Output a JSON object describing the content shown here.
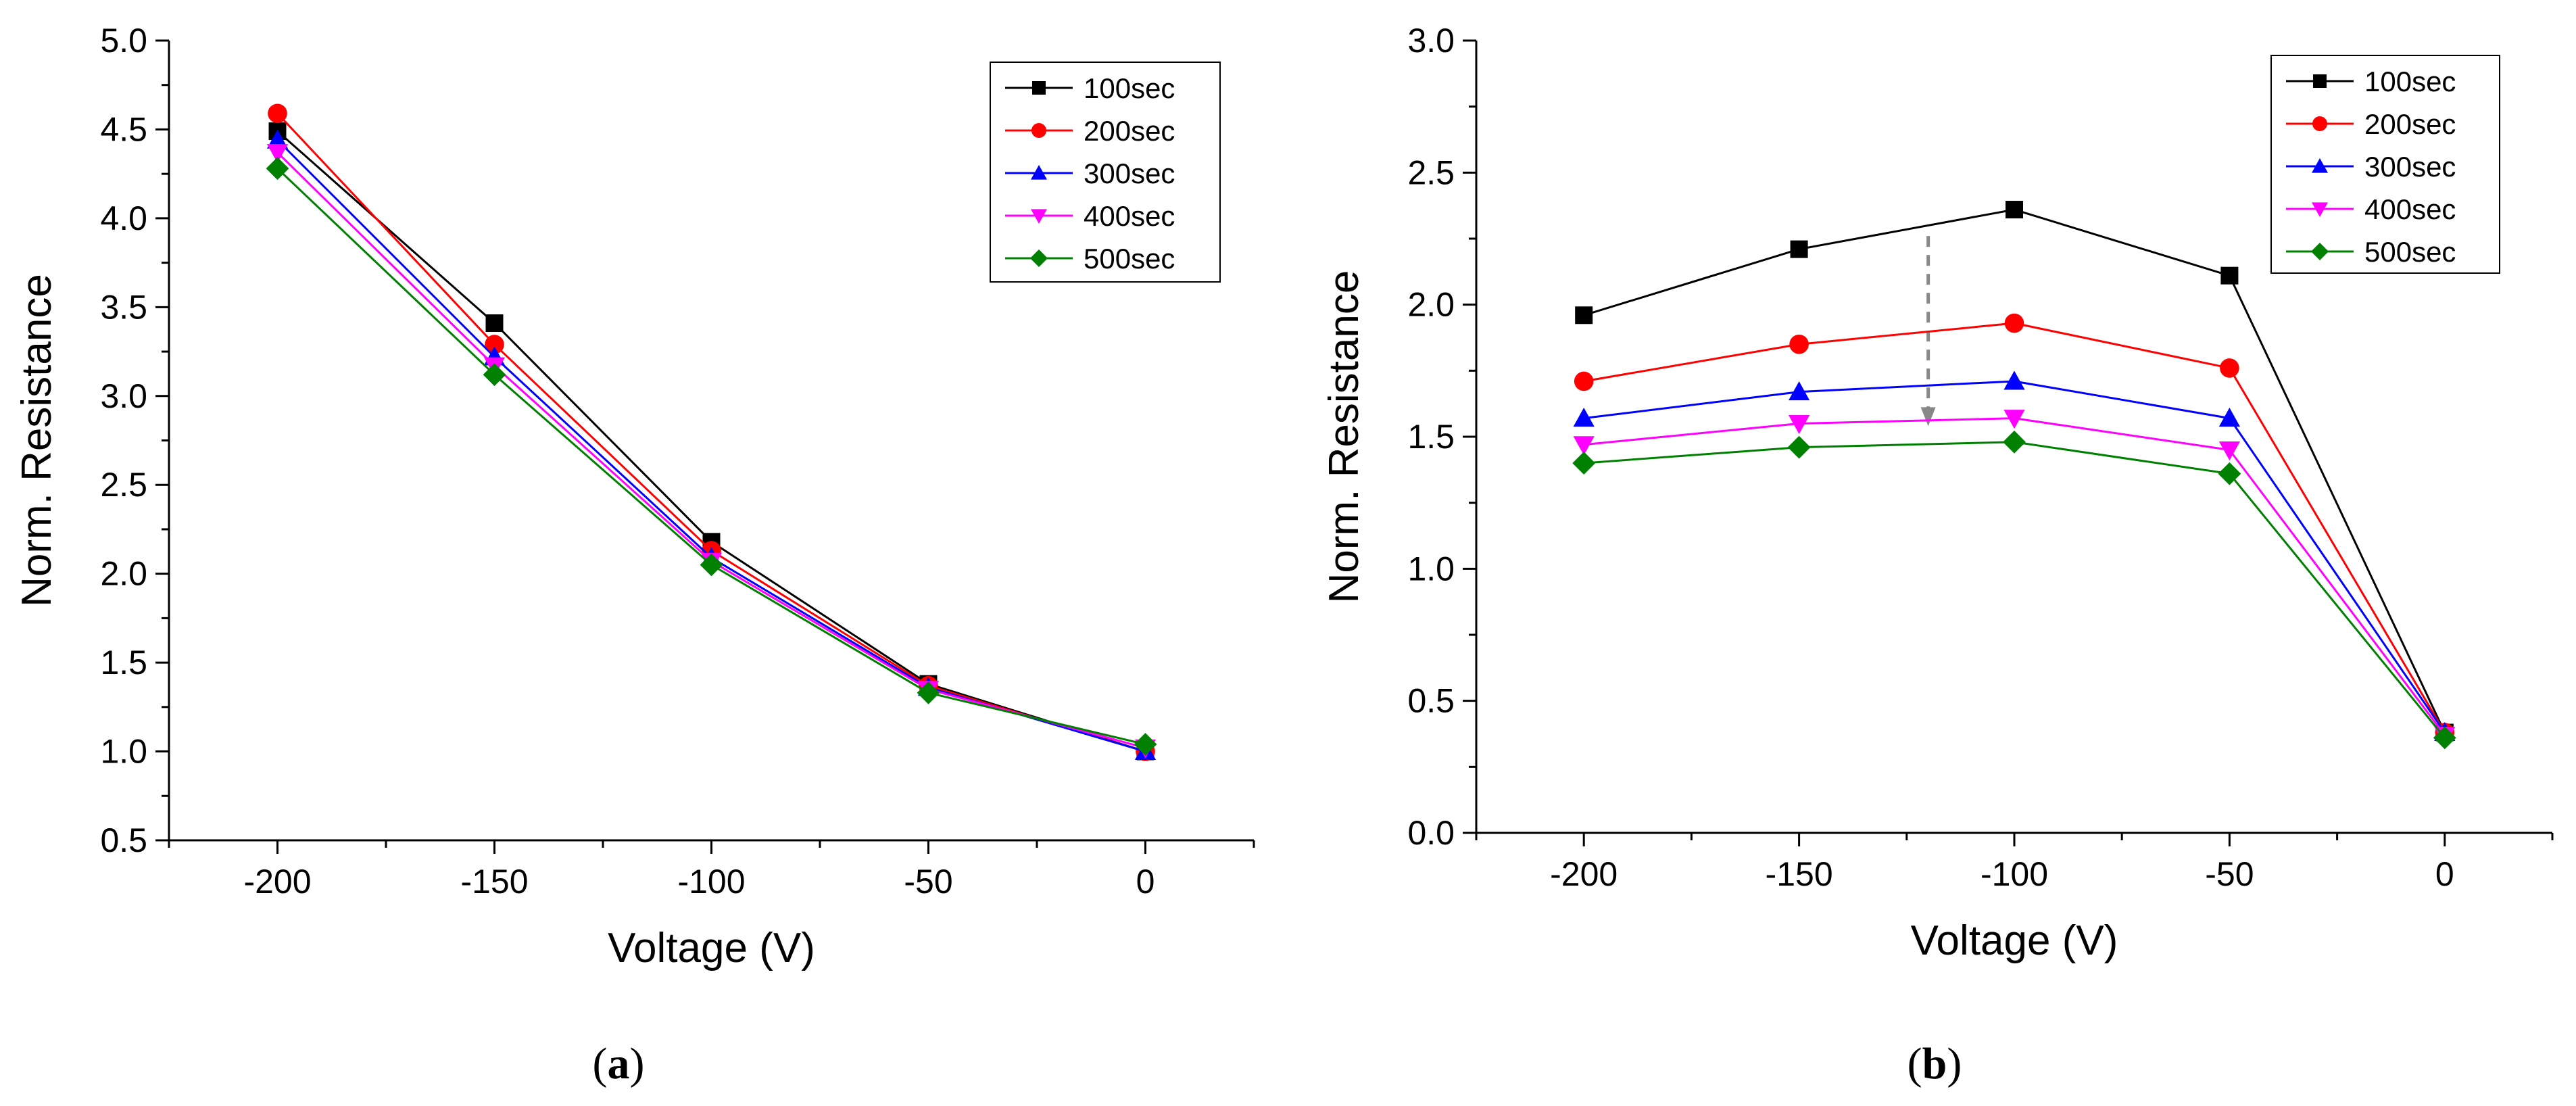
{
  "chart_data": [
    {
      "type": "line",
      "panel_label": "a",
      "xlabel": "Voltage (V)",
      "ylabel": "Norm. Resistance",
      "xlim": [
        -225,
        25
      ],
      "ylim": [
        0.5,
        5.0
      ],
      "xticks": [
        -200,
        -150,
        -100,
        -50,
        0
      ],
      "yticks": [
        0.5,
        1.0,
        1.5,
        2.0,
        2.5,
        3.0,
        3.5,
        4.0,
        4.5,
        5.0
      ],
      "x": [
        -200,
        -150,
        -100,
        -50,
        0
      ],
      "legend_position": "top-right",
      "series": [
        {
          "name": "100sec",
          "color": "#000000",
          "marker": "square",
          "values": [
            4.49,
            3.41,
            2.18,
            1.38,
            1.0
          ]
        },
        {
          "name": "200sec",
          "color": "#ff0000",
          "marker": "circle",
          "values": [
            4.59,
            3.29,
            2.13,
            1.37,
            1.0
          ]
        },
        {
          "name": "300sec",
          "color": "#0000ff",
          "marker": "triangle-up",
          "values": [
            4.44,
            3.22,
            2.09,
            1.36,
            1.0
          ]
        },
        {
          "name": "400sec",
          "color": "#ff00ff",
          "marker": "triangle-down",
          "values": [
            4.37,
            3.17,
            2.07,
            1.35,
            1.02
          ]
        },
        {
          "name": "500sec",
          "color": "#008000",
          "marker": "diamond",
          "values": [
            4.28,
            3.12,
            2.05,
            1.33,
            1.04
          ]
        }
      ]
    },
    {
      "type": "line",
      "panel_label": "b",
      "xlabel": "Voltage (V)",
      "ylabel": "Norm. Resistance",
      "xlim": [
        -225,
        25
      ],
      "ylim": [
        0.0,
        3.0
      ],
      "xticks": [
        -200,
        -150,
        -100,
        -50,
        0
      ],
      "yticks": [
        0.0,
        0.5,
        1.0,
        1.5,
        2.0,
        2.5,
        3.0
      ],
      "x": [
        -200,
        -150,
        -100,
        -50,
        0
      ],
      "legend_position": "top-right",
      "annotation": {
        "type": "dashed-arrow",
        "x": -120,
        "y_from": 2.26,
        "y_to": 1.54,
        "color": "#888888"
      },
      "series": [
        {
          "name": "100sec",
          "color": "#000000",
          "marker": "square",
          "values": [
            1.96,
            2.21,
            2.36,
            2.11,
            0.38
          ]
        },
        {
          "name": "200sec",
          "color": "#ff0000",
          "marker": "circle",
          "values": [
            1.71,
            1.85,
            1.93,
            1.76,
            0.38
          ]
        },
        {
          "name": "300sec",
          "color": "#0000ff",
          "marker": "triangle-up",
          "values": [
            1.57,
            1.67,
            1.71,
            1.57,
            0.38
          ]
        },
        {
          "name": "400sec",
          "color": "#ff00ff",
          "marker": "triangle-down",
          "values": [
            1.47,
            1.55,
            1.57,
            1.45,
            0.37
          ]
        },
        {
          "name": "500sec",
          "color": "#008000",
          "marker": "diamond",
          "values": [
            1.4,
            1.46,
            1.48,
            1.36,
            0.36
          ]
        }
      ]
    }
  ]
}
